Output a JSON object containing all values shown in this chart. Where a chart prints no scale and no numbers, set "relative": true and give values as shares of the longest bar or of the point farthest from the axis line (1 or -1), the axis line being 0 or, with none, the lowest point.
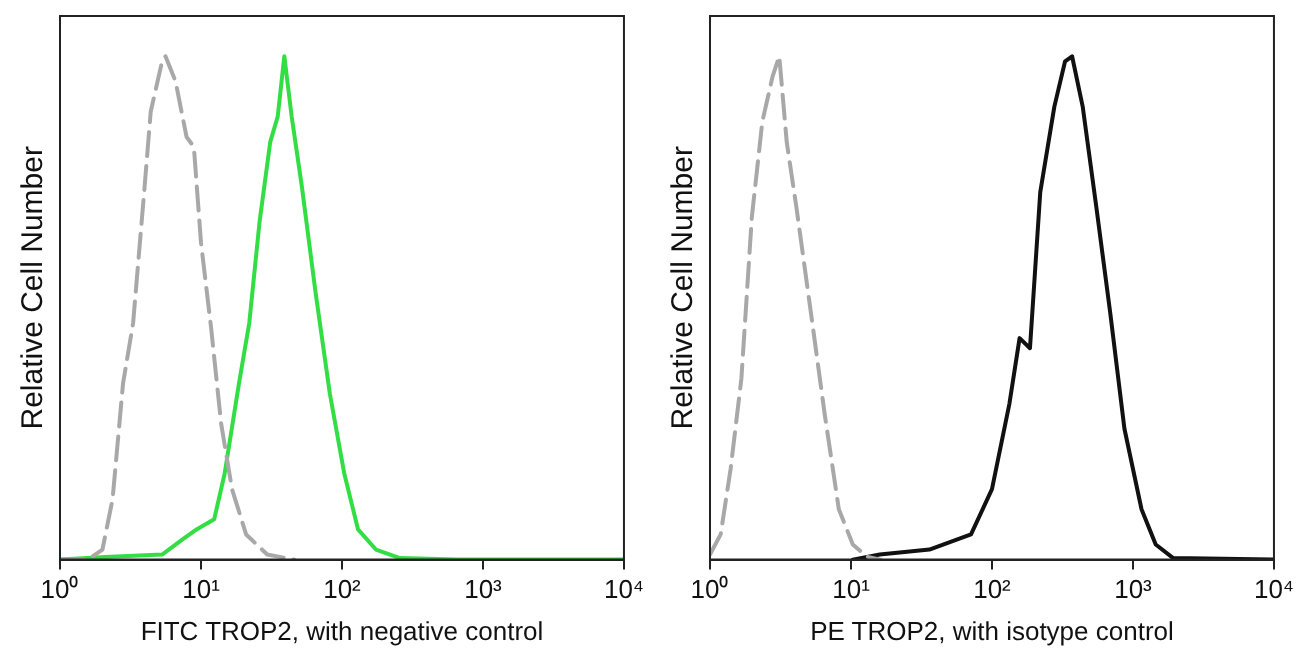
{
  "chart_data": [
    {
      "type": "line",
      "xlabel": "FITC TROP2, with negative control",
      "ylabel": "Relative Cell Number",
      "relative": true,
      "log": "x",
      "marker": "none",
      "grid": false,
      "legend": false,
      "xlim": [
        1,
        10000
      ],
      "xticks": [
        {
          "value": 1,
          "label": "10⁰"
        },
        {
          "value": 10,
          "label": "10¹"
        },
        {
          "value": 100,
          "label": "10²"
        },
        {
          "value": 1000,
          "label": "10³"
        },
        {
          "value": 10000,
          "label": "10⁴"
        }
      ],
      "series": [
        {
          "color": "#a8a8a8",
          "line_style": "dashed",
          "x": [
            1,
            1.58,
            2.0,
            2.36,
            2.8,
            3.3,
            3.98,
            4.4,
            5.3,
            5.6,
            6.6,
            7.9,
            8.9,
            10,
            11.8,
            13.9,
            16.6,
            20.9,
            29.5,
            46
          ],
          "values": [
            0,
            0,
            0.02,
            0.12,
            0.35,
            0.47,
            0.74,
            0.89,
            0.99,
            1.0,
            0.95,
            0.84,
            0.82,
            0.63,
            0.46,
            0.27,
            0.14,
            0.05,
            0.01,
            0
          ]
        },
        {
          "color": "#33dd44",
          "line_style": "solid",
          "x": [
            1,
            2.1,
            5.3,
            7.4,
            9.3,
            12.4,
            14.7,
            18.6,
            22,
            26,
            31,
            35,
            39,
            44,
            52,
            65,
            82,
            104,
            130,
            174,
            258,
            650,
            10000
          ],
          "values": [
            0,
            0.005,
            0.01,
            0.04,
            0.06,
            0.08,
            0.17,
            0.35,
            0.47,
            0.67,
            0.83,
            0.88,
            1.0,
            0.88,
            0.74,
            0.53,
            0.33,
            0.17,
            0.06,
            0.02,
            0.003,
            0,
            0
          ]
        }
      ]
    },
    {
      "type": "line",
      "xlabel": "PE TROP2, with isotype control",
      "ylabel": "Relative Cell Number",
      "relative": true,
      "log": "x",
      "marker": "none",
      "grid": false,
      "legend": false,
      "xlim": [
        1,
        10000
      ],
      "xticks": [
        {
          "value": 1,
          "label": "10⁰"
        },
        {
          "value": 10,
          "label": "10¹"
        },
        {
          "value": 100,
          "label": "10²"
        },
        {
          "value": 1000,
          "label": "10³"
        },
        {
          "value": 10000,
          "label": "10⁴"
        }
      ],
      "series": [
        {
          "color": "#a8a8a8",
          "line_style": "dashed",
          "x": [
            1,
            1.19,
            1.4,
            1.67,
            1.98,
            2.35,
            2.78,
            3.1,
            3.5,
            4.1,
            5.2,
            6.5,
            8.2,
            10.3,
            12.9,
            16.2
          ],
          "values": [
            0.01,
            0.05,
            0.18,
            0.36,
            0.68,
            0.87,
            0.96,
            1.0,
            0.83,
            0.7,
            0.49,
            0.29,
            0.1,
            0.03,
            0.006,
            0
          ]
        },
        {
          "color": "#111111",
          "line_style": "solid",
          "x": [
            10.3,
            16,
            36,
            71,
            100,
            133,
            157,
            186,
            220,
            277,
            330,
            370,
            440,
            550,
            690,
            870,
            1150,
            1450,
            1930,
            10000
          ],
          "values": [
            0,
            0.01,
            0.02,
            0.05,
            0.14,
            0.31,
            0.44,
            0.42,
            0.73,
            0.9,
            0.99,
            1.0,
            0.9,
            0.7,
            0.49,
            0.26,
            0.1,
            0.03,
            0.003,
            0
          ]
        }
      ]
    }
  ]
}
